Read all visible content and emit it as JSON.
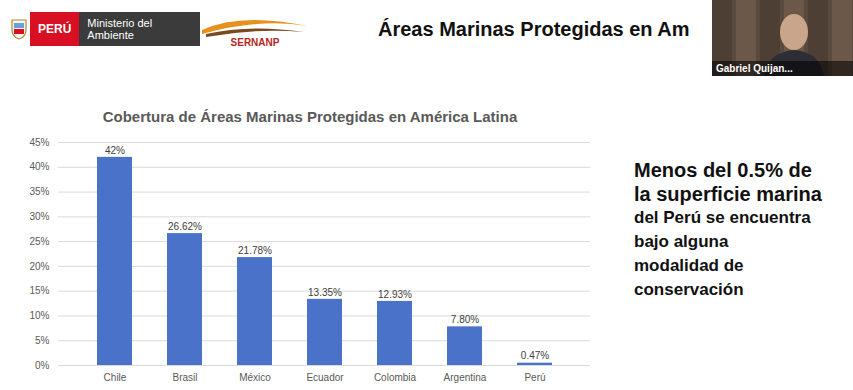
{
  "header": {
    "logos": [
      "PERÚ",
      "Ministerio del Ambiente",
      "SERNANP"
    ],
    "title": "Áreas Marinas Protegidas en Am"
  },
  "webcam": {
    "name": "Gabriel Quijan..."
  },
  "side_note": [
    "Menos del 0.5% de",
    "la superficie marina",
    "del Perú se encuentra",
    "bajo alguna",
    "modalidad de",
    "conservación"
  ],
  "chart_data": {
    "type": "bar",
    "title": "Cobertura de Áreas Marinas Protegidas en América Latina",
    "categories": [
      "Chile",
      "Brasil",
      "México",
      "Ecuador",
      "Colombia",
      "Argentina",
      "Perú"
    ],
    "values": [
      42,
      26.62,
      21.78,
      13.35,
      12.93,
      7.8,
      0.47
    ],
    "value_labels": [
      "42%",
      "26.62%",
      "21.78%",
      "13.35%",
      "12.93%",
      "7.80%",
      "0.47%"
    ],
    "color": "#4a72c8",
    "ylim": [
      0,
      45
    ],
    "yticks": [
      {
        "value": 0,
        "label": "0%"
      },
      {
        "value": 5,
        "label": "5%"
      },
      {
        "value": 10,
        "label": "10%"
      },
      {
        "value": 15,
        "label": "15%"
      },
      {
        "value": 20,
        "label": "20%"
      },
      {
        "value": 25,
        "label": "25%"
      },
      {
        "value": 30,
        "label": "30%"
      },
      {
        "value": 35,
        "label": "35%"
      },
      {
        "value": 40,
        "label": "40%"
      },
      {
        "value": 45,
        "label": "45%"
      }
    ],
    "grid": true,
    "data_labels": true
  }
}
